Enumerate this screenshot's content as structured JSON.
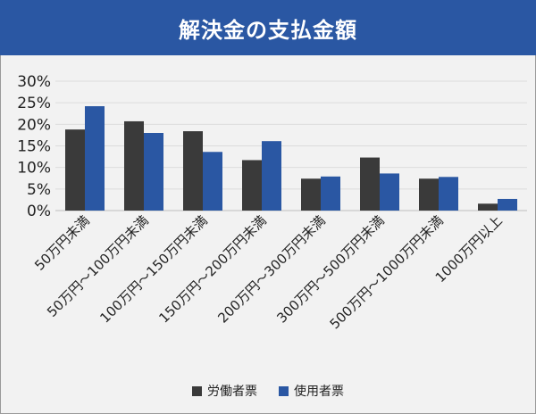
{
  "chart_data": {
    "type": "bar",
    "title": "解決金の支払金額",
    "categories": [
      "50万円未満",
      "50万円〜100万円未満",
      "100万円〜150万円未満",
      "150万円〜200万円未満",
      "200万円〜300万円未満",
      "300万円〜500万円未満",
      "500万円〜1000万円未満",
      "1000万円以上"
    ],
    "series": [
      {
        "name": "労働者票",
        "color": "#3a3a3a",
        "values": [
          18.8,
          20.7,
          18.4,
          11.7,
          7.4,
          12.3,
          7.4,
          1.6
        ]
      },
      {
        "name": "使用者票",
        "color": "#2a57a3",
        "values": [
          24.2,
          18.0,
          13.6,
          16.1,
          7.9,
          8.6,
          7.8,
          2.7
        ]
      }
    ],
    "yticks": [
      "0%",
      "5%",
      "10%",
      "15%",
      "20%",
      "25%",
      "30%"
    ],
    "ylim": [
      0,
      30
    ],
    "grid": true,
    "legend_position": "bottom"
  }
}
